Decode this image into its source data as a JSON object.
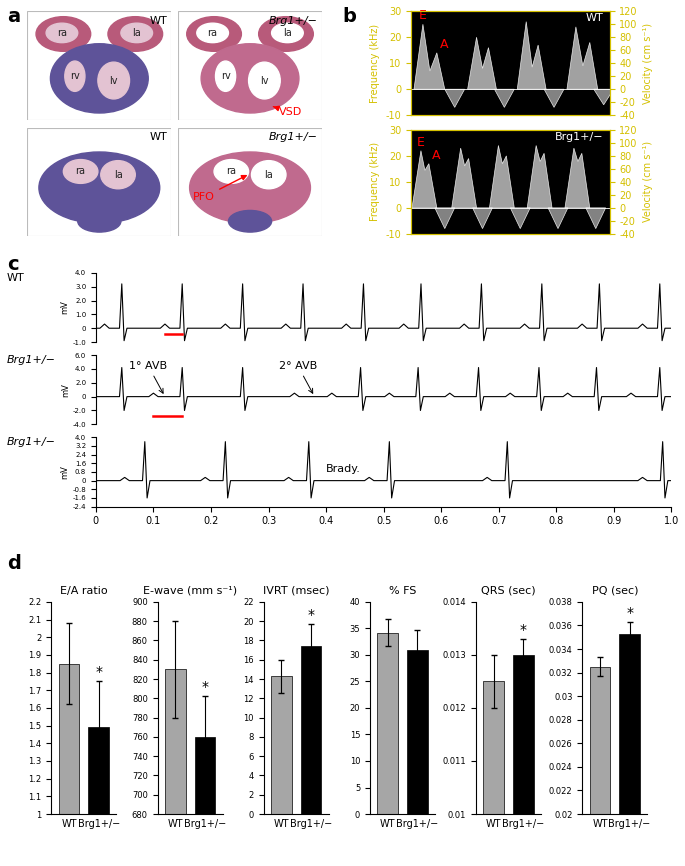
{
  "panel_a": {
    "label": "a",
    "images": [
      {
        "genotype": "WT",
        "chambers": [
          "ra",
          "la",
          "rv",
          "lv"
        ]
      },
      {
        "genotype": "Brg1+/−",
        "chambers": [
          "ra",
          "la",
          "rv",
          "lv"
        ],
        "defect": "VSD"
      },
      {
        "genotype": "WT",
        "chambers": [
          "ra",
          "la"
        ]
      },
      {
        "genotype": "Brg1+/−",
        "chambers": [
          "ra",
          "la"
        ],
        "defect": "PFO"
      }
    ]
  },
  "panel_b": {
    "label": "b",
    "type": "doppler",
    "ylabel": "Frequency (kHz)",
    "y2label": "Velocity (cm s⁻¹)",
    "xlim": [
      0,
      1
    ],
    "ylim": [
      -10,
      30
    ],
    "yticks": [
      -10,
      0,
      10,
      20,
      30
    ],
    "y2lim": [
      -40,
      120
    ],
    "y2ticks": [
      -40,
      -20,
      0,
      20,
      40,
      60,
      80,
      100,
      120
    ],
    "tick_labels": "y",
    "peak_labels": [
      "E",
      "A"
    ],
    "recordings": [
      {
        "genotype": "WT",
        "e_times": [
          0.06,
          0.33,
          0.58,
          0.83
        ],
        "e_peaks": [
          25,
          20,
          26,
          24
        ],
        "a_times": [
          0.13,
          0.39,
          0.64,
          0.9
        ],
        "a_peaks": [
          14,
          16,
          17,
          18
        ],
        "s_times": [
          0.22,
          0.47,
          0.72,
          0.97
        ],
        "s_troughs": [
          -7,
          -7,
          -7,
          -6
        ]
      },
      {
        "genotype": "Brg1+/−",
        "e_times": [
          0.05,
          0.25,
          0.44,
          0.63,
          0.82
        ],
        "e_peaks": [
          22,
          23,
          24,
          24,
          23
        ],
        "a_times": [
          0.09,
          0.29,
          0.48,
          0.67,
          0.86
        ],
        "a_peaks": [
          17,
          19,
          20,
          21,
          21
        ],
        "s_times": [
          0.17,
          0.36,
          0.55,
          0.74,
          0.93
        ],
        "s_troughs": [
          -8,
          -8,
          -8,
          -8,
          -8
        ]
      }
    ]
  },
  "panel_c": {
    "label": "c",
    "type": "ecg",
    "xlim": [
      0,
      1.0
    ],
    "xticks": [
      0,
      0.1,
      0.2,
      0.3,
      0.4,
      0.5,
      0.6,
      0.7,
      0.8,
      0.9,
      1.0
    ],
    "traces": [
      {
        "name": "WT",
        "ylabel": "mV",
        "ylim": [
          -1.0,
          4.0
        ],
        "yticks": [
          -1.0,
          0,
          1.0,
          2.0,
          3.0,
          4.0
        ],
        "tick_labels": "y",
        "r_peak": 3.2,
        "s_trough": -0.9,
        "p_amplitude": 0.3,
        "beats": [
          0.045,
          0.15,
          0.255,
          0.36,
          0.465,
          0.565,
          0.67,
          0.775,
          0.875,
          0.98
        ],
        "p_waves": [
          0.015,
          0.12,
          0.225,
          0.33,
          0.435,
          0.535,
          0.64,
          0.745,
          0.845,
          0.95
        ],
        "pr_interval": [
          0.12,
          0.15
        ]
      },
      {
        "name": "Brg1+/−",
        "ylabel": "mV",
        "ylim": [
          -4.0,
          6.0
        ],
        "yticks": [
          -4.0,
          -2.0,
          0,
          2.0,
          4.0,
          6.0
        ],
        "tick_labels": "y",
        "r_peak": 4.2,
        "s_trough": -2.0,
        "p_amplitude": 0.5,
        "beats": [
          0.045,
          0.15,
          0.255,
          0.46,
          0.56,
          0.665,
          0.77,
          0.87,
          0.98
        ],
        "p_waves": [
          0.1,
          0.345,
          0.41,
          0.51,
          0.615,
          0.72,
          0.82,
          0.93
        ],
        "pr_interval": [
          0.1,
          0.15
        ],
        "annotations": [
          {
            "text": "1° AVB",
            "x": 0.12
          },
          {
            "text": "2° AVB",
            "x": 0.38
          }
        ]
      },
      {
        "name": "Brg1+/−",
        "ylabel": "mV",
        "ylim": [
          -2.4,
          4.0
        ],
        "yticks": [
          -2.4,
          -1.6,
          -0.8,
          0,
          0.8,
          1.6,
          2.4,
          3.2,
          4.0
        ],
        "r_peak": 3.6,
        "s_trough": -1.6,
        "p_amplitude": 0.3,
        "beats": [
          0.085,
          0.225,
          0.37,
          0.51,
          0.715,
          0.985
        ],
        "p_waves": [
          0.05,
          0.19,
          0.335,
          0.475,
          0.68,
          0.95
        ],
        "annotations": [
          {
            "text": "Brady."
          }
        ]
      }
    ]
  },
  "panel_d": {
    "label": "d"
  },
  "chart_data": [
    {
      "type": "bar",
      "title": "E/A ratio",
      "categories": [
        "WT",
        "Brg1+/−"
      ],
      "values": [
        1.85,
        1.49
      ],
      "errors": [
        0.23,
        0.26
      ],
      "colors": [
        "#a6a6a6",
        "#000000"
      ],
      "ylim": [
        1,
        2.2
      ],
      "yticks": [
        1,
        1.1,
        1.2,
        1.3,
        1.4,
        1.5,
        1.6,
        1.7,
        1.8,
        1.9,
        2,
        2.1,
        2.2
      ],
      "annotations": [
        {
          "category": "Brg1+/−",
          "text": "*"
        }
      ]
    },
    {
      "type": "bar",
      "title": "E-wave (mm s⁻¹)",
      "categories": [
        "WT",
        "Brg1+/−"
      ],
      "values": [
        830,
        760
      ],
      "errors": [
        50,
        42
      ],
      "colors": [
        "#a6a6a6",
        "#000000"
      ],
      "ylim": [
        680,
        900
      ],
      "yticks": [
        680,
        700,
        720,
        740,
        760,
        780,
        800,
        820,
        840,
        860,
        880,
        900
      ],
      "annotations": [
        {
          "category": "Brg1+/−",
          "text": "*"
        }
      ]
    },
    {
      "type": "bar",
      "title": "IVRT (msec)",
      "categories": [
        "WT",
        "Brg1+/−"
      ],
      "values": [
        14.3,
        17.4
      ],
      "errors": [
        1.7,
        2.3
      ],
      "colors": [
        "#a6a6a6",
        "#000000"
      ],
      "ylim": [
        0,
        22
      ],
      "yticks": [
        0,
        2,
        4,
        6,
        8,
        10,
        12,
        14,
        16,
        18,
        20,
        22
      ],
      "annotations": [
        {
          "category": "Brg1+/−",
          "text": "*"
        }
      ]
    },
    {
      "type": "bar",
      "title": "% FS",
      "categories": [
        "WT",
        "Brg1+/−"
      ],
      "values": [
        34.2,
        31.0
      ],
      "errors": [
        2.6,
        3.7
      ],
      "colors": [
        "#a6a6a6",
        "#000000"
      ],
      "ylim": [
        0,
        40
      ],
      "yticks": [
        0,
        5,
        10,
        15,
        20,
        25,
        30,
        35,
        40
      ]
    },
    {
      "type": "bar",
      "title": "QRS (sec)",
      "categories": [
        "WT",
        "Brg1+/−"
      ],
      "values": [
        0.0125,
        0.013
      ],
      "errors": [
        0.0005,
        0.0003
      ],
      "colors": [
        "#a6a6a6",
        "#000000"
      ],
      "ylim": [
        0.01,
        0.014
      ],
      "yticks": [
        0.01,
        0.011,
        0.012,
        0.013,
        0.014
      ],
      "annotations": [
        {
          "category": "Brg1+/−",
          "text": "*"
        }
      ]
    },
    {
      "type": "bar",
      "title": "PQ (sec)",
      "categories": [
        "WT",
        "Brg1+/−"
      ],
      "values": [
        0.0325,
        0.0353
      ],
      "errors": [
        0.0008,
        0.001
      ],
      "colors": [
        "#a6a6a6",
        "#000000"
      ],
      "ylim": [
        0.02,
        0.038
      ],
      "yticks": [
        0.02,
        0.022,
        0.024,
        0.026,
        0.028,
        0.03,
        0.032,
        0.034,
        0.036,
        0.038
      ],
      "annotations": [
        {
          "category": "Brg1+/−",
          "text": "*"
        }
      ]
    }
  ]
}
